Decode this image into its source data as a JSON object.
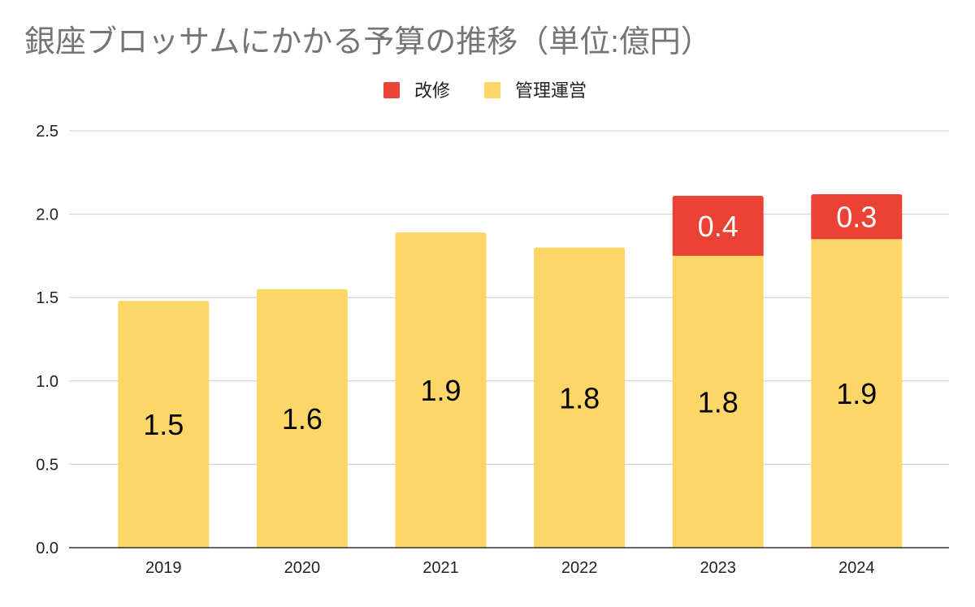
{
  "chart_data": {
    "type": "bar",
    "stacked": true,
    "title": "銀座ブロッサムにかかる予算の推移（単位:億円）",
    "xlabel": "",
    "ylabel": "",
    "ylim": [
      0,
      2.5
    ],
    "yticks": [
      "0.0",
      "0.5",
      "1.0",
      "1.5",
      "2.0",
      "2.5"
    ],
    "ytick_values": [
      0,
      0.5,
      1.0,
      1.5,
      2.0,
      2.5
    ],
    "grid": true,
    "legend_position": "top-center",
    "categories": [
      "2019",
      "2020",
      "2021",
      "2022",
      "2023",
      "2024"
    ],
    "series": [
      {
        "name": "管理運営",
        "color": "#FCD767",
        "label_color": "#000000",
        "values": [
          1.48,
          1.55,
          1.89,
          1.8,
          1.75,
          1.85
        ],
        "labels": [
          "1.5",
          "1.6",
          "1.9",
          "1.8",
          "1.8",
          "1.9"
        ]
      },
      {
        "name": "改修",
        "color": "#EA4335",
        "label_color": "#FFFFFF",
        "values": [
          0,
          0,
          0,
          0,
          0.36,
          0.27
        ],
        "labels": [
          "",
          "",
          "",
          "",
          "0.4",
          "0.3"
        ]
      }
    ],
    "legend_order": [
      1,
      0
    ]
  }
}
